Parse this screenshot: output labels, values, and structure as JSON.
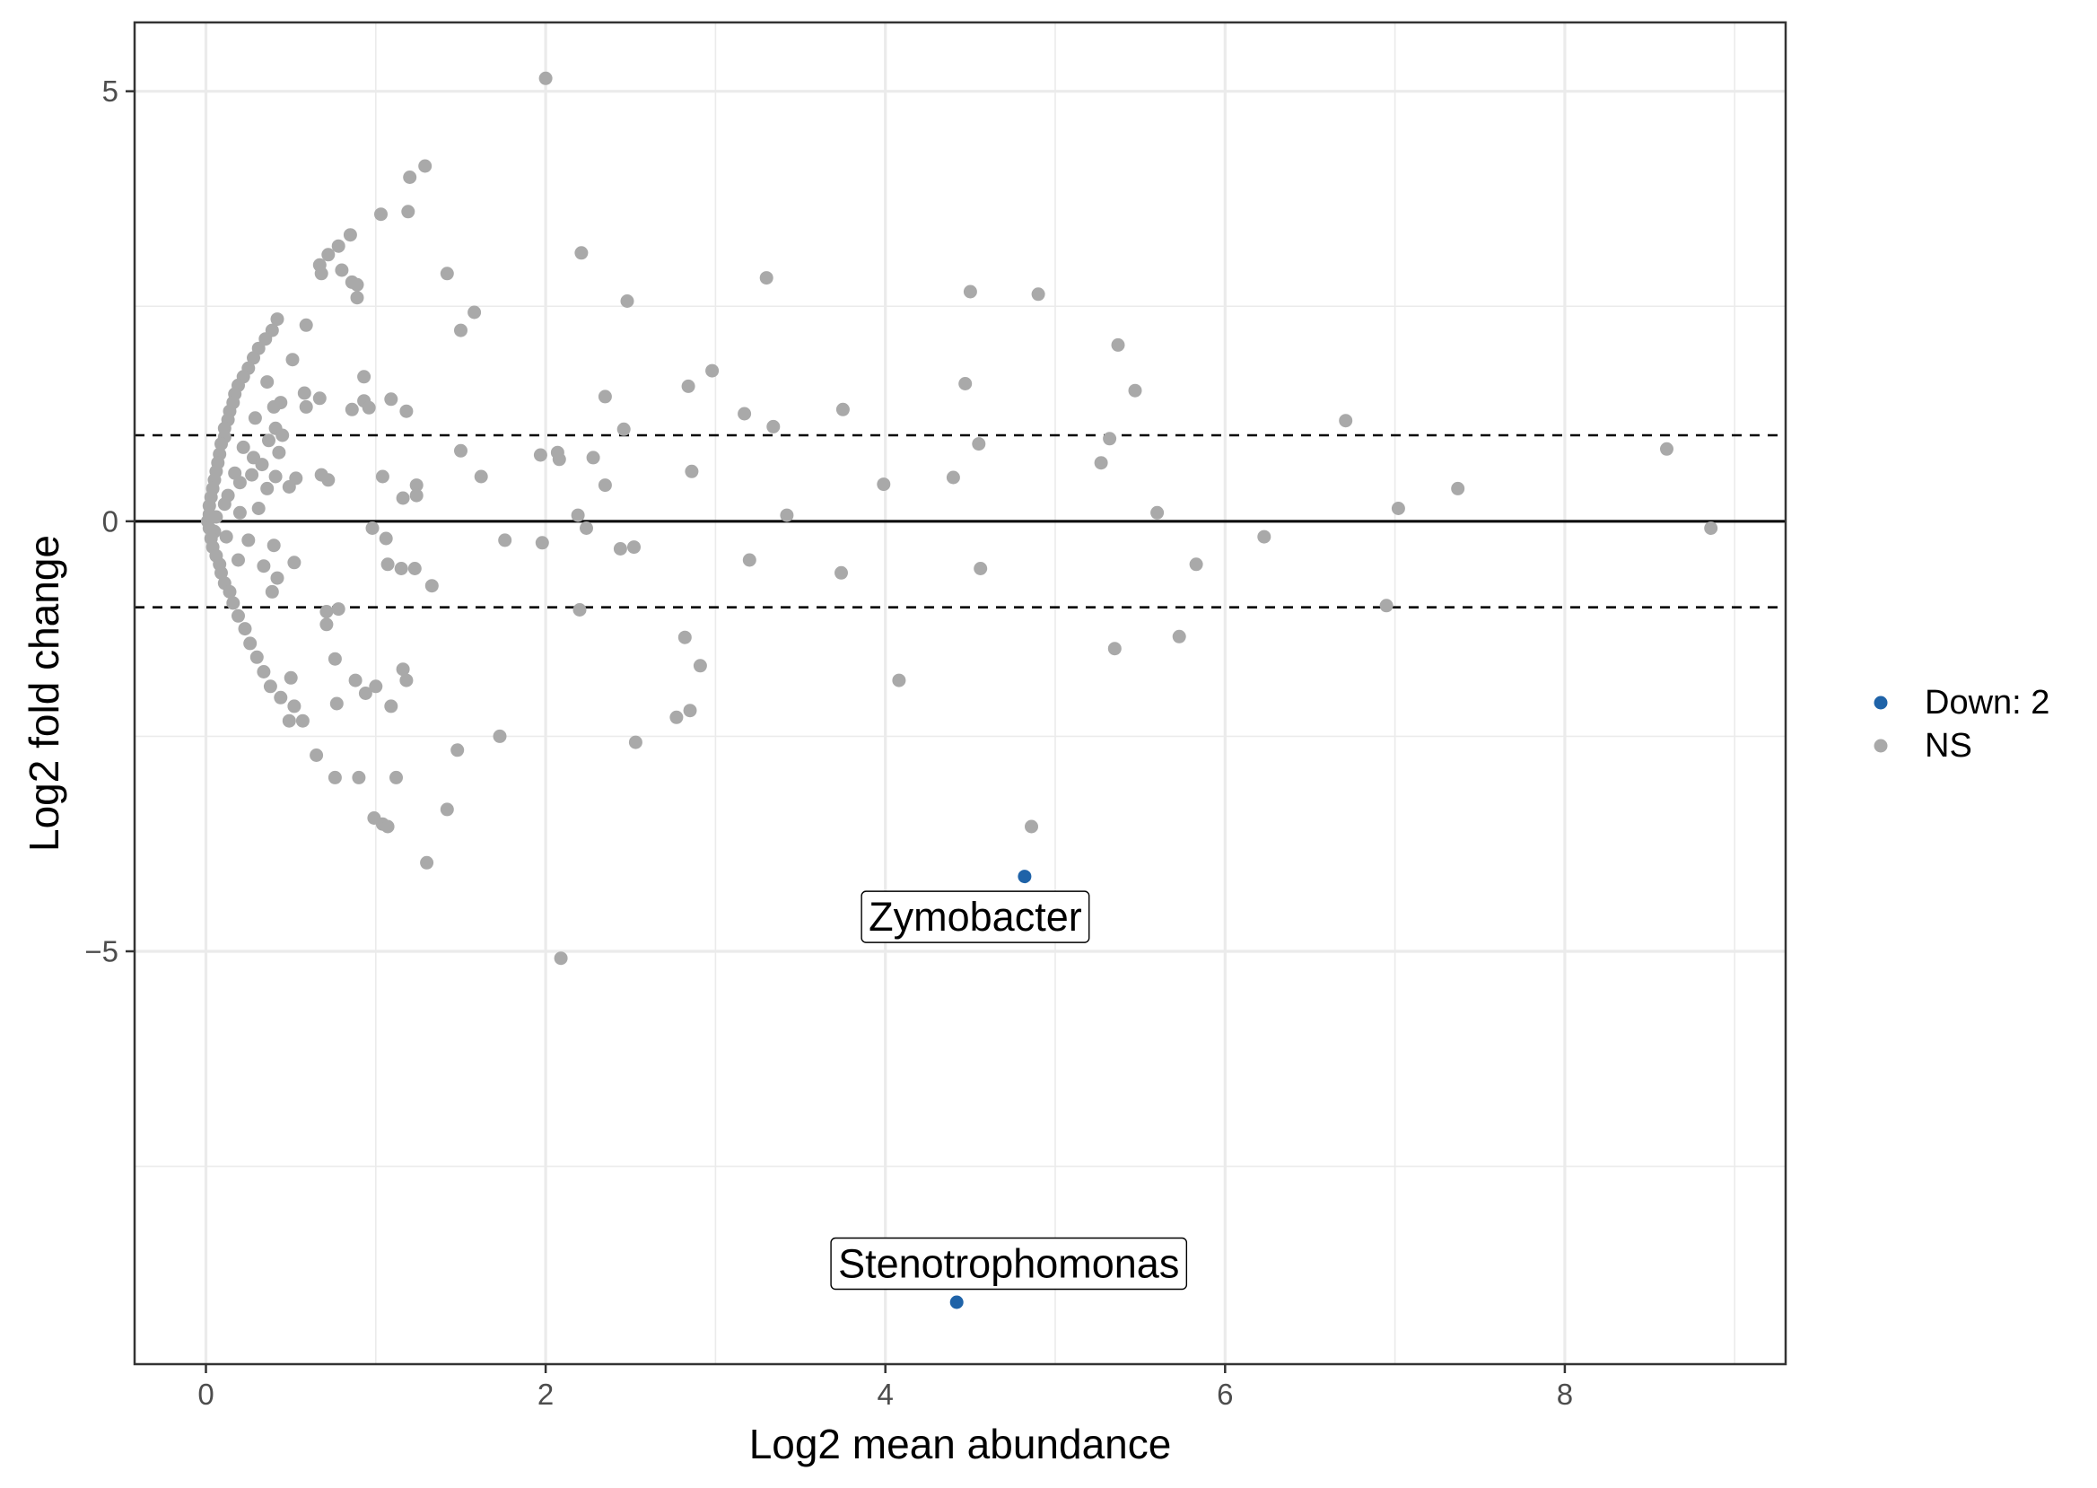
{
  "chart_data": {
    "type": "scatter",
    "title": "",
    "xlabel": "Log2 mean abundance",
    "ylabel": "Log2 fold change",
    "xlim": [
      -0.42,
      9.3
    ],
    "ylim": [
      -9.8,
      5.8
    ],
    "x_ticks": [
      0,
      2,
      4,
      6,
      8
    ],
    "y_ticks": [
      -5,
      0,
      5
    ],
    "x_tick_labels": [
      "0",
      "2",
      "4",
      "6",
      "8"
    ],
    "y_tick_labels": [
      "−5",
      "0",
      "5"
    ],
    "grid": true,
    "reference_lines": [
      {
        "y": 0,
        "style": "solid"
      },
      {
        "y": 1,
        "style": "dashed"
      },
      {
        "y": -1,
        "style": "dashed"
      }
    ],
    "legend_position": "right",
    "colors": {
      "Down": "#1f63a8",
      "NS": "#a9a9a9",
      "grid": "#ebebeb",
      "border": "#333333"
    },
    "series": [
      {
        "name": "Down: 2",
        "color": "#1f63a8",
        "points": [
          [
            4.82,
            -4.13
          ],
          [
            4.42,
            -9.08
          ]
        ]
      },
      {
        "name": "NS",
        "color": "#a9a9a9",
        "points": [
          [
            2.0,
            5.15
          ],
          [
            1.29,
            4.13
          ],
          [
            1.2,
            4.0
          ],
          [
            1.03,
            3.57
          ],
          [
            1.19,
            3.6
          ],
          [
            0.85,
            3.33
          ],
          [
            0.78,
            3.2
          ],
          [
            0.72,
            3.1
          ],
          [
            0.67,
            2.98
          ],
          [
            0.68,
            2.88
          ],
          [
            0.8,
            2.92
          ],
          [
            0.86,
            2.78
          ],
          [
            0.89,
            2.75
          ],
          [
            0.89,
            2.6
          ],
          [
            2.21,
            3.12
          ],
          [
            1.42,
            2.88
          ],
          [
            3.3,
            2.83
          ],
          [
            4.5,
            2.67
          ],
          [
            4.9,
            2.64
          ],
          [
            2.48,
            2.56
          ],
          [
            1.58,
            2.43
          ],
          [
            1.5,
            2.22
          ],
          [
            0.42,
            2.35
          ],
          [
            0.59,
            2.28
          ],
          [
            0.39,
            2.22
          ],
          [
            0.35,
            2.12
          ],
          [
            0.31,
            2.01
          ],
          [
            0.28,
            1.9
          ],
          [
            0.51,
            1.88
          ],
          [
            0.25,
            1.78
          ],
          [
            0.22,
            1.68
          ],
          [
            0.93,
            1.68
          ],
          [
            0.19,
            1.58
          ],
          [
            0.36,
            1.62
          ],
          [
            0.17,
            1.48
          ],
          [
            0.58,
            1.49
          ],
          [
            0.67,
            1.43
          ],
          [
            0.16,
            1.38
          ],
          [
            0.44,
            1.38
          ],
          [
            0.4,
            1.33
          ],
          [
            0.86,
            1.3
          ],
          [
            0.59,
            1.33
          ],
          [
            0.14,
            1.28
          ],
          [
            1.09,
            1.42
          ],
          [
            0.93,
            1.4
          ],
          [
            1.18,
            1.28
          ],
          [
            0.96,
            1.32
          ],
          [
            0.13,
            1.18
          ],
          [
            0.29,
            1.2
          ],
          [
            0.11,
            1.08
          ],
          [
            0.41,
            1.08
          ],
          [
            0.11,
            0.98
          ],
          [
            0.37,
            0.94
          ],
          [
            0.45,
            1.0
          ],
          [
            0.09,
            0.9
          ],
          [
            0.22,
            0.86
          ],
          [
            0.43,
            0.8
          ],
          [
            0.08,
            0.78
          ],
          [
            0.28,
            0.74
          ],
          [
            0.07,
            0.68
          ],
          [
            0.33,
            0.66
          ],
          [
            0.06,
            0.58
          ],
          [
            0.17,
            0.56
          ],
          [
            0.27,
            0.54
          ],
          [
            0.41,
            0.52
          ],
          [
            0.53,
            0.5
          ],
          [
            0.68,
            0.54
          ],
          [
            0.72,
            0.48
          ],
          [
            0.05,
            0.48
          ],
          [
            0.2,
            0.45
          ],
          [
            0.49,
            0.4
          ],
          [
            0.36,
            0.38
          ],
          [
            0.04,
            0.38
          ],
          [
            0.03,
            0.28
          ],
          [
            0.13,
            0.3
          ],
          [
            0.02,
            0.18
          ],
          [
            0.11,
            0.2
          ],
          [
            0.31,
            0.15
          ],
          [
            0.2,
            0.1
          ],
          [
            0.02,
            0.08
          ],
          [
            0.01,
            0.0
          ],
          [
            0.06,
            0.05
          ],
          [
            0.02,
            -0.08
          ],
          [
            0.05,
            -0.12
          ],
          [
            0.03,
            -0.2
          ],
          [
            0.12,
            -0.18
          ],
          [
            0.04,
            -0.3
          ],
          [
            0.25,
            -0.22
          ],
          [
            0.06,
            -0.4
          ],
          [
            0.4,
            -0.28
          ],
          [
            0.08,
            -0.5
          ],
          [
            0.19,
            -0.45
          ],
          [
            0.09,
            -0.6
          ],
          [
            0.34,
            -0.52
          ],
          [
            0.11,
            -0.72
          ],
          [
            0.52,
            -0.48
          ],
          [
            0.14,
            -0.82
          ],
          [
            0.42,
            -0.66
          ],
          [
            0.16,
            -0.95
          ],
          [
            0.39,
            -0.82
          ],
          [
            0.19,
            -1.1
          ],
          [
            0.23,
            -1.25
          ],
          [
            0.71,
            -1.05
          ],
          [
            0.78,
            -1.02
          ],
          [
            0.26,
            -1.42
          ],
          [
            0.71,
            -1.2
          ],
          [
            0.3,
            -1.58
          ],
          [
            0.34,
            -1.75
          ],
          [
            0.38,
            -1.92
          ],
          [
            0.76,
            -1.6
          ],
          [
            0.5,
            -1.82
          ],
          [
            0.44,
            -2.05
          ],
          [
            0.52,
            -2.15
          ],
          [
            0.57,
            -2.32
          ],
          [
            0.49,
            -2.32
          ],
          [
            0.88,
            -1.85
          ],
          [
            0.94,
            -2.0
          ],
          [
            1.0,
            -1.92
          ],
          [
            1.09,
            -2.15
          ],
          [
            0.77,
            -2.12
          ],
          [
            1.16,
            -1.72
          ],
          [
            1.18,
            -1.85
          ],
          [
            0.65,
            -2.72
          ],
          [
            0.76,
            -2.98
          ],
          [
            0.9,
            -2.98
          ],
          [
            1.12,
            -2.98
          ],
          [
            0.99,
            -3.45
          ],
          [
            1.04,
            -3.52
          ],
          [
            1.07,
            -3.55
          ],
          [
            1.42,
            -3.35
          ],
          [
            1.3,
            -3.97
          ],
          [
            1.48,
            -2.66
          ],
          [
            1.73,
            -2.5
          ],
          [
            2.53,
            -2.57
          ],
          [
            2.77,
            -2.28
          ],
          [
            2.85,
            -2.2
          ],
          [
            2.82,
            -1.35
          ],
          [
            2.91,
            -1.68
          ],
          [
            2.09,
            -5.08
          ],
          [
            4.08,
            -1.85
          ],
          [
            4.86,
            -3.55
          ],
          [
            5.35,
            -1.48
          ],
          [
            5.73,
            -1.34
          ],
          [
            6.95,
            -0.98
          ],
          [
            4.56,
            -0.55
          ],
          [
            3.74,
            -0.6
          ],
          [
            3.2,
            -0.45
          ],
          [
            2.2,
            -1.03
          ],
          [
            2.44,
            -0.32
          ],
          [
            2.52,
            -0.3
          ],
          [
            1.76,
            -0.22
          ],
          [
            1.98,
            -0.25
          ],
          [
            2.24,
            -0.08
          ],
          [
            2.19,
            0.07
          ],
          [
            2.35,
            0.42
          ],
          [
            3.42,
            0.07
          ],
          [
            3.99,
            0.43
          ],
          [
            4.4,
            0.51
          ],
          [
            4.55,
            0.9
          ],
          [
            5.27,
            0.68
          ],
          [
            5.32,
            0.96
          ],
          [
            5.6,
            0.1
          ],
          [
            5.83,
            -0.5
          ],
          [
            6.23,
            -0.18
          ],
          [
            7.02,
            0.15
          ],
          [
            7.37,
            0.38
          ],
          [
            8.6,
            0.84
          ],
          [
            8.86,
            -0.08
          ],
          [
            6.71,
            1.17
          ],
          [
            5.37,
            2.05
          ],
          [
            5.47,
            1.52
          ],
          [
            4.47,
            1.6
          ],
          [
            3.75,
            1.3
          ],
          [
            3.17,
            1.25
          ],
          [
            3.34,
            1.1
          ],
          [
            2.98,
            1.75
          ],
          [
            2.84,
            1.57
          ],
          [
            2.35,
            1.45
          ],
          [
            2.46,
            1.07
          ],
          [
            2.28,
            0.74
          ],
          [
            2.07,
            0.8
          ],
          [
            2.08,
            0.72
          ],
          [
            1.97,
            0.77
          ],
          [
            1.5,
            0.82
          ],
          [
            1.62,
            0.52
          ],
          [
            1.24,
            0.42
          ],
          [
            1.16,
            0.27
          ],
          [
            1.24,
            0.3
          ],
          [
            1.04,
            0.52
          ],
          [
            0.98,
            -0.08
          ],
          [
            1.06,
            -0.2
          ],
          [
            1.07,
            -0.5
          ],
          [
            1.15,
            -0.55
          ],
          [
            1.23,
            -0.55
          ],
          [
            1.33,
            -0.75
          ],
          [
            2.86,
            0.58
          ]
        ]
      }
    ],
    "annotations": [
      {
        "text": "Zymobacter",
        "point": [
          4.82,
          -4.13
        ]
      },
      {
        "text": "Stenotrophomonas",
        "point": [
          4.42,
          -9.08
        ]
      }
    ]
  }
}
